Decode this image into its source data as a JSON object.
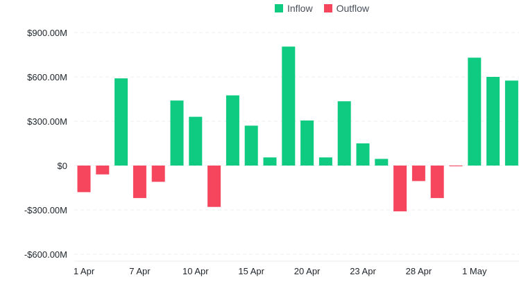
{
  "legend": {
    "inflow_label": "Inflow",
    "outflow_label": "Outflow"
  },
  "colors": {
    "inflow": "#0ecb81",
    "outflow": "#f6465d"
  },
  "chart_data": {
    "type": "bar",
    "title": "",
    "xlabel": "",
    "ylabel": "",
    "ylim": [
      -600000000,
      900000000
    ],
    "y_ticks": [
      {
        "value": 900000000,
        "label": "$900.00M"
      },
      {
        "value": 600000000,
        "label": "$600.00M"
      },
      {
        "value": 300000000,
        "label": "$300.00M"
      },
      {
        "value": 0,
        "label": "$0"
      },
      {
        "value": -300000000,
        "label": "-$300.00M"
      },
      {
        "value": -600000000,
        "label": "-$600.00M"
      }
    ],
    "x_tick_labels": [
      {
        "index": 0,
        "label": "1 Apr"
      },
      {
        "index": 3,
        "label": "7 Apr"
      },
      {
        "index": 6,
        "label": "10 Apr"
      },
      {
        "index": 9,
        "label": "15 Apr"
      },
      {
        "index": 12,
        "label": "20 Apr"
      },
      {
        "index": 15,
        "label": "23 Apr"
      },
      {
        "index": 18,
        "label": "28 Apr"
      },
      {
        "index": 21,
        "label": "1 May"
      }
    ],
    "series": [
      {
        "name": "Inflow",
        "values": [
          0,
          0,
          590000000,
          0,
          0,
          440000000,
          330000000,
          0,
          475000000,
          270000000,
          55000000,
          805000000,
          305000000,
          55000000,
          435000000,
          150000000,
          45000000,
          0,
          0,
          0,
          0,
          730000000,
          600000000,
          575000000
        ]
      },
      {
        "name": "Outflow",
        "values": [
          -180000000,
          -60000000,
          0,
          -220000000,
          -110000000,
          0,
          0,
          -280000000,
          0,
          0,
          0,
          0,
          0,
          0,
          0,
          0,
          0,
          -310000000,
          -105000000,
          -220000000,
          -5000000,
          0,
          0,
          0
        ]
      }
    ]
  }
}
